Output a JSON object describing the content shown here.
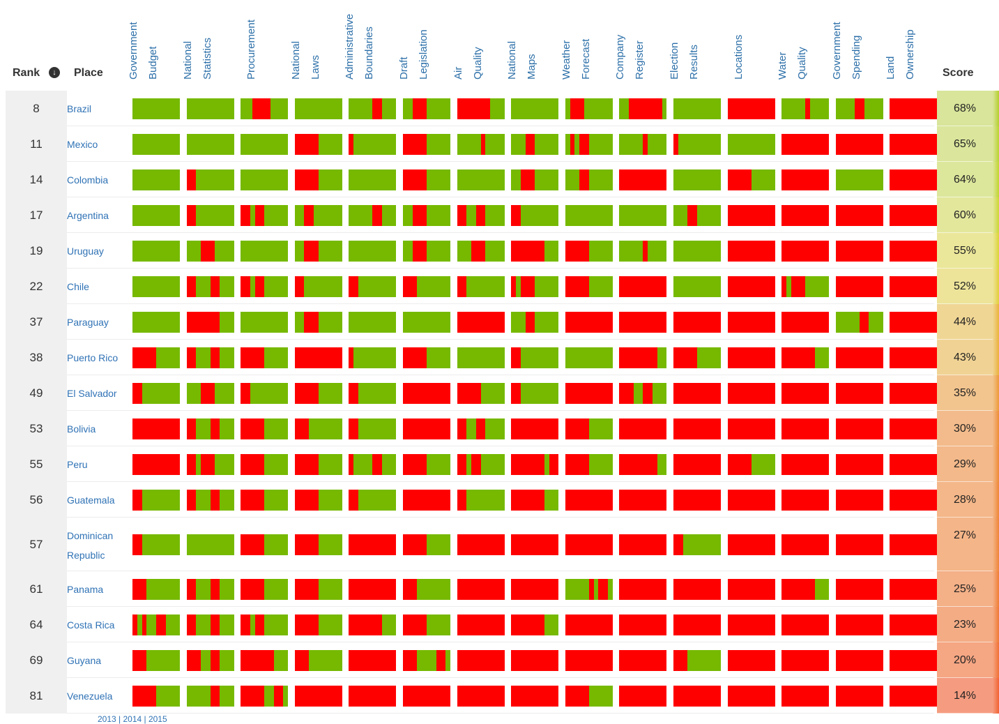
{
  "header": {
    "rank_label": "Rank",
    "place_label": "Place",
    "score_label": "Score"
  },
  "colors": {
    "open": "#76b900",
    "closed": "#ff0000"
  },
  "columns": [
    {
      "line1": "Government",
      "line2": "Budget"
    },
    {
      "line1": "National",
      "line2": "Statistics"
    },
    {
      "line1": "Procurement",
      "line2": ""
    },
    {
      "line1": "National",
      "line2": "Laws"
    },
    {
      "line1": "Administrative",
      "line2": "Boundaries"
    },
    {
      "line1": "Draft",
      "line2": "Legislation"
    },
    {
      "line1": "Air",
      "line2": "Quality"
    },
    {
      "line1": "National",
      "line2": "Maps"
    },
    {
      "line1": "Weather",
      "line2": "Forecast"
    },
    {
      "line1": "Company",
      "line2": "Register"
    },
    {
      "line1": "Election",
      "line2": "Results"
    },
    {
      "line1": "Locations",
      "line2": ""
    },
    {
      "line1": "Water",
      "line2": "Quality"
    },
    {
      "line1": "Government",
      "line2": "Spending"
    },
    {
      "line1": "Land",
      "line2": "Ownership"
    }
  ],
  "rows": [
    {
      "rank": "8",
      "place": "Brazil",
      "score": "68%",
      "score_color": "#d8e59a",
      "edge_color": "#b4cf2c",
      "bars": [
        "G",
        "G",
        "G2R3G3",
        "G",
        "G5R2G3",
        "G2R3G5",
        "R7G3",
        "G",
        "G1R3G6",
        "G2R7G1",
        "G",
        "R",
        "G5R1G4",
        "G4R2G4",
        "R"
      ]
    },
    {
      "rank": "11",
      "place": "Mexico",
      "score": "65%",
      "score_color": "#dbe69c",
      "edge_color": "#bad32f",
      "bars": [
        "G",
        "G",
        "G",
        "R5G5",
        "R1G9",
        "R5G5",
        "G5R1G4",
        "G3R2G5",
        "G1R1G1R2G5",
        "G5R1G4",
        "R1G9",
        "G",
        "R",
        "R",
        "R"
      ]
    },
    {
      "rank": "14",
      "place": "Colombia",
      "score": "64%",
      "score_color": "#dde79c",
      "edge_color": "#c0d530",
      "bars": [
        "G",
        "R2G8",
        "G",
        "R5G5",
        "G",
        "R5G5",
        "G",
        "G2R3G5",
        "G3R2G5",
        "R",
        "G",
        "R5G5",
        "R",
        "G",
        "R"
      ]
    },
    {
      "rank": "17",
      "place": "Argentina",
      "score": "60%",
      "score_color": "#e3e79c",
      "edge_color": "#ccd633",
      "bars": [
        "G",
        "R2G8",
        "R2G1R2G5",
        "G2R2G6",
        "G5R2G3",
        "G2R3G5",
        "R2G2R2G4",
        "R2G8",
        "G",
        "G",
        "G3R2G5",
        "R",
        "R",
        "R",
        "R"
      ]
    },
    {
      "rank": "19",
      "place": "Uruguay",
      "score": "55%",
      "score_color": "#ebe79a",
      "edge_color": "#dbd436",
      "bars": [
        "G",
        "G3R3G4",
        "G",
        "G2R3G5",
        "G",
        "G2R3G5",
        "G3R3G4",
        "R7G3",
        "R5G5",
        "G5R1G4",
        "G",
        "R",
        "R",
        "R",
        "R"
      ]
    },
    {
      "rank": "22",
      "place": "Chile",
      "score": "52%",
      "score_color": "#ede49a",
      "edge_color": "#e3ce38",
      "bars": [
        "G",
        "R2G3R2G3",
        "R2G1R2G5",
        "R2G8",
        "R2G8",
        "R3G7",
        "R2G8",
        "R1G1R3G5",
        "R5G5",
        "R",
        "G",
        "R",
        "R1G1R3G5",
        "R",
        "R"
      ]
    },
    {
      "rank": "37",
      "place": "Paraguay",
      "score": "44%",
      "score_color": "#f0d695",
      "edge_color": "#eab43a",
      "bars": [
        "G",
        "R7G3",
        "G",
        "G2R3G5",
        "G",
        "G",
        "R",
        "G3R2G5",
        "R",
        "R",
        "R",
        "R",
        "R",
        "G5R2G3",
        "R"
      ]
    },
    {
      "rank": "38",
      "place": "Puerto Rico",
      "score": "43%",
      "score_color": "#f0d394",
      "edge_color": "#ebb03a",
      "bars": [
        "R5G5",
        "R2G3R2G3",
        "R5G5",
        "R",
        "R1G9",
        "R5G5",
        "G",
        "R2G8",
        "G",
        "R8G2",
        "R5G5",
        "R",
        "R7G3",
        "R",
        "R"
      ]
    },
    {
      "rank": "49",
      "place": "El Salvador",
      "score": "35%",
      "score_color": "#f2c48e",
      "edge_color": "#ed9a38",
      "bars": [
        "R2G8",
        "G3R3G4",
        "R2G8",
        "R5G5",
        "R2G8",
        "R",
        "R5G5",
        "R2G8",
        "R",
        "R3G2R2G3",
        "R",
        "R",
        "R",
        "R",
        "R"
      ]
    },
    {
      "rank": "53",
      "place": "Bolivia",
      "score": "30%",
      "score_color": "#f3bb8b",
      "edge_color": "#ee8d36",
      "bars": [
        "R",
        "R2G3R2G3",
        "R5G5",
        "R3G7",
        "R2G8",
        "R",
        "R2G2R2G4",
        "R",
        "R5G5",
        "R",
        "R",
        "R",
        "R",
        "R",
        "R"
      ]
    },
    {
      "rank": "55",
      "place": "Peru",
      "score": "29%",
      "score_color": "#f3b98a",
      "edge_color": "#ee8a36",
      "bars": [
        "R",
        "R2G1R3G4",
        "R5G5",
        "R5G5",
        "R1G4R2G3",
        "R5G5",
        "R2G1R2G5",
        "R7G1R2",
        "R5G5",
        "R8G2",
        "R",
        "R5G5",
        "R",
        "R",
        "R"
      ]
    },
    {
      "rank": "56",
      "place": "Guatemala",
      "score": "28%",
      "score_color": "#f4b789",
      "edge_color": "#ef8736",
      "bars": [
        "R2G8",
        "R2G3R2G3",
        "R5G5",
        "R5G5",
        "R2G8",
        "R",
        "R2G8",
        "R7G3",
        "R",
        "R",
        "R",
        "R",
        "R",
        "R",
        "R"
      ]
    },
    {
      "rank": "57",
      "place": "Dominican Republic",
      "score": "27%",
      "score_color": "#f4b588",
      "edge_color": "#ef8436",
      "bars": [
        "R2G8",
        "G",
        "R5G5",
        "R5G5",
        "R",
        "R5G5",
        "R",
        "R",
        "R",
        "R",
        "R2G8",
        "R",
        "R",
        "R",
        "R"
      ]
    },
    {
      "rank": "61",
      "place": "Panama",
      "score": "25%",
      "score_color": "#f4b087",
      "edge_color": "#f07e35",
      "bars": [
        "R3G7",
        "R2G3R2G3",
        "R5G5",
        "R5G5",
        "R",
        "R3G7",
        "R",
        "R",
        "G5R1G1R2G1",
        "R",
        "R",
        "R",
        "R7G3",
        "R",
        "R"
      ]
    },
    {
      "rank": "64",
      "place": "Costa Rica",
      "score": "23%",
      "score_color": "#f4ac85",
      "edge_color": "#f07834",
      "bars": [
        "R1G1R1G2R2G3",
        "R2G3R2G3",
        "R2G1R2G5",
        "R5G5",
        "R7G3",
        "R5G5",
        "R",
        "R7G3",
        "R",
        "R",
        "R",
        "R",
        "R",
        "R",
        "R"
      ]
    },
    {
      "rank": "69",
      "place": "Guyana",
      "score": "20%",
      "score_color": "#f5a683",
      "edge_color": "#f17034",
      "bars": [
        "R3G7",
        "R3G2R2G3",
        "R7G3",
        "R3G7",
        "R",
        "R3G4R2G1",
        "R",
        "R",
        "R",
        "R",
        "R3G7",
        "R",
        "R",
        "R",
        "R"
      ]
    },
    {
      "rank": "81",
      "place": "Venezuela",
      "score": "14%",
      "score_color": "#f59c80",
      "edge_color": "#f26233",
      "bars": [
        "R5G5",
        "G5R2G3",
        "R5G2R2G1",
        "R",
        "R",
        "R",
        "R",
        "R",
        "R5G5",
        "R",
        "R",
        "R",
        "R",
        "R",
        "R"
      ]
    }
  ],
  "footer_links": "2013 | 2014 | 2015"
}
